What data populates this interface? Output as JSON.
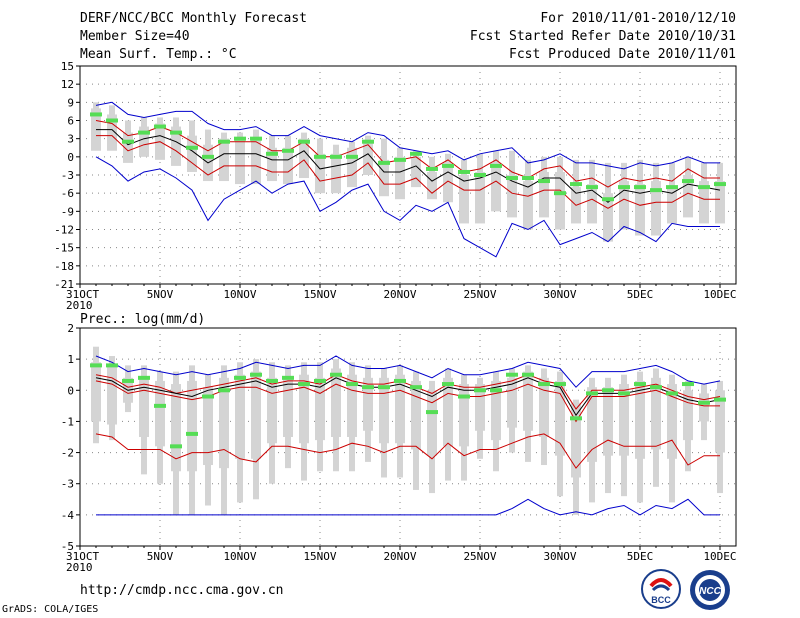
{
  "header": {
    "left": [
      "DERF/NCC/BCC Monthly Forecast",
      "Member Size=40",
      "Mean Surf. Temp.: °C"
    ],
    "right": [
      "For 2010/11/01-2010/12/10",
      "Fcst Started Refer Date 2010/10/31",
      "Fcst Produced Date 2010/11/01"
    ]
  },
  "x_ticks": [
    "31OCT",
    "5NOV",
    "10NOV",
    "15NOV",
    "20NOV",
    "25NOV",
    "30NOV",
    "5DEC",
    "10DEC"
  ],
  "x_year": "2010",
  "footer": {
    "url": "http://cmdp.ncc.cma.gov.cn",
    "credit": "GrADS: COLA/IGES",
    "logo1_text": "BCC",
    "logo2_text": "NCC"
  },
  "colors": {
    "envelope": "#0000cc",
    "quantile": "#cc0000",
    "mean": "#000000",
    "box": "#d4d4d4",
    "obs": "#55dd55"
  },
  "chart_data": [
    {
      "type": "line",
      "title": "Mean Surf. Temp.: °C",
      "ylabel": "Mean Surf. Temp.: °C",
      "ylim": [
        -21,
        15
      ],
      "yticks": [
        -21,
        -18,
        -15,
        -12,
        -9,
        -6,
        -3,
        0,
        3,
        6,
        9,
        12,
        15
      ],
      "x_days": [
        1,
        2,
        3,
        4,
        5,
        6,
        7,
        8,
        9,
        10,
        11,
        12,
        13,
        14,
        15,
        16,
        17,
        18,
        19,
        20,
        21,
        22,
        23,
        24,
        25,
        26,
        27,
        28,
        29,
        30,
        31,
        32,
        33,
        34,
        35,
        36,
        37,
        38,
        39,
        40
      ],
      "series": [
        {
          "name": "max",
          "values": [
            8.5,
            9,
            7,
            6.5,
            7,
            7.5,
            7.5,
            5.5,
            4.5,
            4.5,
            5,
            3.5,
            3.5,
            5,
            3.5,
            3,
            2.5,
            4,
            3.5,
            1.5,
            1,
            0.5,
            1,
            -0.5,
            0.5,
            1,
            1.5,
            -1,
            -0.5,
            0.5,
            -1,
            -1,
            -1.5,
            -2,
            -1,
            -1.5,
            -1,
            0,
            -1,
            -1
          ]
        },
        {
          "name": "q_upper",
          "values": [
            6,
            5.5,
            3.5,
            4,
            5,
            4,
            2.5,
            1,
            2.5,
            2.5,
            2.5,
            1,
            1,
            2.5,
            0,
            0,
            1,
            2,
            -1,
            -0.5,
            0,
            -2,
            -0.5,
            -2.5,
            -2,
            -0.5,
            -2.5,
            -3.5,
            -2,
            -1.5,
            -4,
            -3.5,
            -5,
            -3.5,
            -4,
            -3.5,
            -4,
            -2,
            -3.5,
            -3.5
          ]
        },
        {
          "name": "mean",
          "values": [
            4.5,
            4.5,
            2,
            3,
            3.5,
            2.5,
            1,
            -1,
            0.5,
            0.5,
            0.5,
            -0.5,
            -0.5,
            1,
            -2,
            -1.5,
            -1,
            0.5,
            -2.5,
            -2.5,
            -1.5,
            -4,
            -2.5,
            -4,
            -3.5,
            -2.5,
            -4,
            -5,
            -3.5,
            -3.5,
            -6,
            -5.5,
            -7.5,
            -5.5,
            -6,
            -5.5,
            -6,
            -4.5,
            -5,
            -5.5
          ]
        },
        {
          "name": "q_lower",
          "values": [
            3.5,
            3.5,
            1,
            2,
            2.5,
            1,
            -1,
            -3,
            -1.5,
            -1.5,
            -1.5,
            -2.5,
            -2.5,
            -0.5,
            -4,
            -3.5,
            -3,
            -1,
            -4.5,
            -4.5,
            -3.5,
            -6,
            -4,
            -5.5,
            -5.5,
            -4,
            -6,
            -6.5,
            -5.5,
            -5.5,
            -8,
            -7,
            -8.5,
            -7,
            -8,
            -7.5,
            -7.5,
            -6,
            -7,
            -7
          ]
        },
        {
          "name": "min",
          "values": [
            0,
            -1.5,
            -4,
            -2.5,
            -2,
            -3.5,
            -5.5,
            -10.5,
            -7,
            -5.5,
            -4,
            -6,
            -4.5,
            -4,
            -9,
            -7.5,
            -5.5,
            -4.5,
            -9,
            -10.5,
            -8,
            -9,
            -7.5,
            -13.5,
            -15,
            -16.5,
            -11,
            -12,
            -10.5,
            -14.5,
            -13.5,
            -12.5,
            -14,
            -11.5,
            -12.5,
            -14,
            -11,
            -11.5,
            -11.5,
            -11.5
          ]
        }
      ],
      "boxes": {
        "upper": [
          9,
          8.5,
          6,
          6.5,
          6.5,
          6.5,
          6,
          4.5,
          4,
          4,
          4.5,
          3.5,
          3.5,
          4,
          3,
          2,
          2.5,
          3.5,
          3,
          1.5,
          1,
          0,
          0.5,
          -0.5,
          0.5,
          1,
          1,
          -0.5,
          0,
          0,
          -0.5,
          -0.5,
          -1,
          -1,
          -0.5,
          -1,
          -1,
          0,
          -1,
          -1
        ],
        "lower": [
          3,
          3,
          0,
          1,
          0,
          -1,
          -2,
          -3,
          -3.5,
          -4,
          -4,
          -3,
          -4,
          -3,
          -5,
          -5,
          -4,
          -2.5,
          -5.5,
          -6,
          -4,
          -6,
          -6.5,
          -10,
          -10,
          -8,
          -9,
          -11,
          -9,
          -10.5,
          -10,
          -10,
          -12,
          -10.5,
          -12,
          -12,
          -10,
          -9,
          -10,
          -10
        ],
        "inner_upper": [
          8,
          7,
          4,
          5,
          5.5,
          5,
          3.5,
          2,
          3,
          3,
          3,
          1.5,
          1.5,
          3,
          0.5,
          0.5,
          1.5,
          2.5,
          -0.5,
          0,
          0,
          -2.5,
          -1,
          -3,
          -2.5,
          -1,
          -3,
          -4,
          -2.5,
          -2.5,
          -5,
          -4.5,
          -6,
          -4,
          -4.5,
          -4,
          -5,
          -3,
          -4,
          -4
        ],
        "inner_lower": [
          1,
          1,
          -1,
          0,
          -0.5,
          -1.5,
          -2.5,
          -4,
          -4,
          -4.5,
          -4.5,
          -4,
          -4.5,
          -3.5,
          -6,
          -6,
          -5,
          -3,
          -6.5,
          -7,
          -5,
          -7,
          -7.5,
          -11,
          -11,
          -9,
          -10,
          -12,
          -10,
          -12,
          -11,
          -11,
          -14,
          -12,
          -13,
          -13,
          -11,
          -10,
          -11,
          -11
        ]
      },
      "observed": [
        7,
        6,
        2.5,
        4,
        5,
        4,
        1.5,
        0,
        2.5,
        3,
        3,
        0.5,
        1,
        2.5,
        0,
        0,
        0,
        2.5,
        -1,
        -0.5,
        0.5,
        -2,
        -1.5,
        -2.5,
        -3,
        -1.5,
        -3.5,
        -3.5,
        -4,
        -6,
        -4.5,
        -5,
        -7,
        -5,
        -5,
        -5.5,
        -5,
        -4,
        -5,
        -4.5
      ]
    },
    {
      "type": "line",
      "title": "Prec.: log(mm/d)",
      "ylabel": "Prec.: log(mm/d)",
      "ylim": [
        -5,
        2
      ],
      "yticks": [
        -5,
        -4,
        -3,
        -2,
        -1,
        0,
        1,
        2
      ],
      "x_days": [
        1,
        2,
        3,
        4,
        5,
        6,
        7,
        8,
        9,
        10,
        11,
        12,
        13,
        14,
        15,
        16,
        17,
        18,
        19,
        20,
        21,
        22,
        23,
        24,
        25,
        26,
        27,
        28,
        29,
        30,
        31,
        32,
        33,
        34,
        35,
        36,
        37,
        38,
        39,
        40
      ],
      "series": [
        {
          "name": "max",
          "values": [
            1.1,
            0.9,
            0.6,
            0.7,
            0.6,
            0.5,
            0.6,
            0.5,
            0.6,
            0.7,
            0.9,
            0.8,
            0.7,
            0.8,
            0.8,
            1.1,
            0.8,
            0.7,
            0.7,
            0.8,
            0.6,
            0.4,
            0.7,
            0.5,
            0.5,
            0.6,
            0.7,
            0.9,
            0.8,
            0.7,
            0.1,
            0.6,
            0.6,
            0.6,
            0.7,
            0.8,
            0.6,
            0.3,
            0.2,
            0.3
          ]
        },
        {
          "name": "q_upper",
          "values": [
            0.5,
            0.4,
            0.1,
            0.2,
            0.1,
            -0.1,
            0,
            0.1,
            0.2,
            0.3,
            0.4,
            0.2,
            0.3,
            0.3,
            0.2,
            0.5,
            0.3,
            0.2,
            0.2,
            0.3,
            0.1,
            -0.1,
            0.2,
            0.1,
            0.1,
            0.2,
            0.3,
            0.5,
            0.3,
            0.2,
            -0.6,
            0,
            0,
            0,
            0.1,
            0.2,
            0,
            -0.2,
            -0.3,
            -0.2
          ]
        },
        {
          "name": "mean",
          "values": [
            0.4,
            0.3,
            0,
            0.1,
            0,
            -0.1,
            -0.2,
            0,
            0.1,
            0.2,
            0.3,
            0.1,
            0.2,
            0.2,
            0.1,
            0.4,
            0.2,
            0.1,
            0.1,
            0.2,
            0,
            -0.2,
            0.1,
            0,
            0,
            0.1,
            0.2,
            0.4,
            0.2,
            0.1,
            -0.8,
            -0.1,
            -0.1,
            -0.1,
            0,
            0.1,
            -0.1,
            -0.3,
            -0.4,
            -0.3
          ]
        },
        {
          "name": "q_lower",
          "values": [
            0.3,
            0.2,
            -0.1,
            0,
            -0.1,
            -0.2,
            -0.3,
            -0.2,
            0,
            0.1,
            0.1,
            -0.1,
            0,
            0.1,
            -0.1,
            0.2,
            0,
            -0.1,
            -0.1,
            0,
            -0.2,
            -0.4,
            -0.1,
            -0.2,
            -0.2,
            -0.1,
            0,
            0.2,
            0,
            -0.1,
            -1,
            -0.2,
            -0.2,
            -0.2,
            -0.1,
            0,
            -0.2,
            -0.4,
            -0.5,
            -0.5
          ]
        },
        {
          "name": "low",
          "values": [
            -1.4,
            -1.5,
            -1.9,
            -1.9,
            -1.9,
            -2.2,
            -2,
            -2,
            -1.9,
            -2.2,
            -2.3,
            -1.8,
            -1.8,
            -1.9,
            -2,
            -1.9,
            -1.7,
            -1.8,
            -2,
            -1.8,
            -1.8,
            -2.2,
            -1.7,
            -2.1,
            -1.9,
            -1.9,
            -1.7,
            -1.5,
            -1.4,
            -1.7,
            -2.5,
            -1.9,
            -1.6,
            -1.8,
            -1.8,
            -1.8,
            -1.6,
            -2.4,
            -2.1,
            -2.1
          ]
        },
        {
          "name": "min",
          "values": [
            -4,
            -4,
            -4,
            -4,
            -4,
            -4,
            -4,
            -4,
            -4,
            -4,
            -4,
            -4,
            -4,
            -4,
            -4,
            -4,
            -4,
            -4,
            -4,
            -4,
            -4,
            -4,
            -4,
            -4,
            -4,
            -4,
            -3.8,
            -3.5,
            -3.8,
            -4,
            -3.9,
            -4,
            -3.8,
            -3.7,
            -4,
            -3.7,
            -3.8,
            -3.5,
            -4,
            -4
          ]
        }
      ],
      "boxes": {
        "upper": [
          1.4,
          1.1,
          0.8,
          0.8,
          0.6,
          0.6,
          0.8,
          0.5,
          0.8,
          0.9,
          1,
          0.9,
          0.8,
          0.9,
          0.9,
          1,
          0.9,
          0.8,
          0.7,
          0.8,
          0.6,
          0.3,
          0.7,
          0.5,
          0.4,
          0.6,
          0.7,
          0.8,
          0.7,
          0.6,
          -0.3,
          0.4,
          0.4,
          0.5,
          0.6,
          0.7,
          0.5,
          0.3,
          0.2,
          0.3
        ],
        "lower": [
          -1.7,
          -1.6,
          -0.7,
          -2.7,
          -3,
          -4,
          -4,
          -3.7,
          -4,
          -3.6,
          -3.5,
          -3,
          -2.5,
          -2.9,
          -2.6,
          -2.6,
          -2.6,
          -2.3,
          -2.8,
          -2.8,
          -3.2,
          -3.3,
          -2.9,
          -2.9,
          -2.2,
          -2.6,
          -2,
          -2.3,
          -2.4,
          -3.4,
          -4,
          -3.6,
          -3.3,
          -3.4,
          -3.6,
          -3.1,
          -3.6,
          -2.6,
          -1.6,
          -3.3
        ],
        "inner_upper": [
          0.9,
          0.8,
          0.4,
          0.4,
          0.3,
          0.2,
          0.3,
          0.1,
          0.4,
          0.5,
          0.6,
          0.4,
          0.4,
          0.5,
          0.4,
          0.7,
          0.5,
          0.4,
          0.4,
          0.5,
          0.3,
          0,
          0.4,
          0.2,
          0.2,
          0.3,
          0.4,
          0.6,
          0.4,
          0.3,
          -0.4,
          0.1,
          0.1,
          0.2,
          0.3,
          0.4,
          0.2,
          0,
          -0.1,
          0
        ],
        "inner_lower": [
          -1,
          -1.1,
          -0.4,
          -1.5,
          -1.8,
          -2.6,
          -2.6,
          -2.4,
          -2.5,
          -2.2,
          -2.2,
          -1.7,
          -1.5,
          -1.7,
          -1.6,
          -1.5,
          -1.5,
          -1.3,
          -1.7,
          -1.7,
          -1.9,
          -2.1,
          -1.8,
          -1.8,
          -1.3,
          -1.6,
          -1.2,
          -1.3,
          -1.5,
          -2.1,
          -2.8,
          -2.3,
          -2.1,
          -2.1,
          -2.2,
          -1.9,
          -2.2,
          -1.6,
          -1,
          -2
        ]
      },
      "observed": [
        0.8,
        0.8,
        0.3,
        0.4,
        -0.5,
        -1.8,
        -1.4,
        -0.2,
        0,
        0.4,
        0.5,
        0.3,
        0.4,
        0.2,
        0.3,
        0.5,
        0.2,
        0.1,
        0.1,
        0.3,
        0.1,
        -0.7,
        0.2,
        -0.2,
        0,
        0,
        0.5,
        0.5,
        0.2,
        0.2,
        -0.9,
        -0.1,
        0,
        -0.1,
        0.2,
        0.1,
        -0.1,
        0.2,
        -0.4,
        -0.3
      ]
    }
  ]
}
